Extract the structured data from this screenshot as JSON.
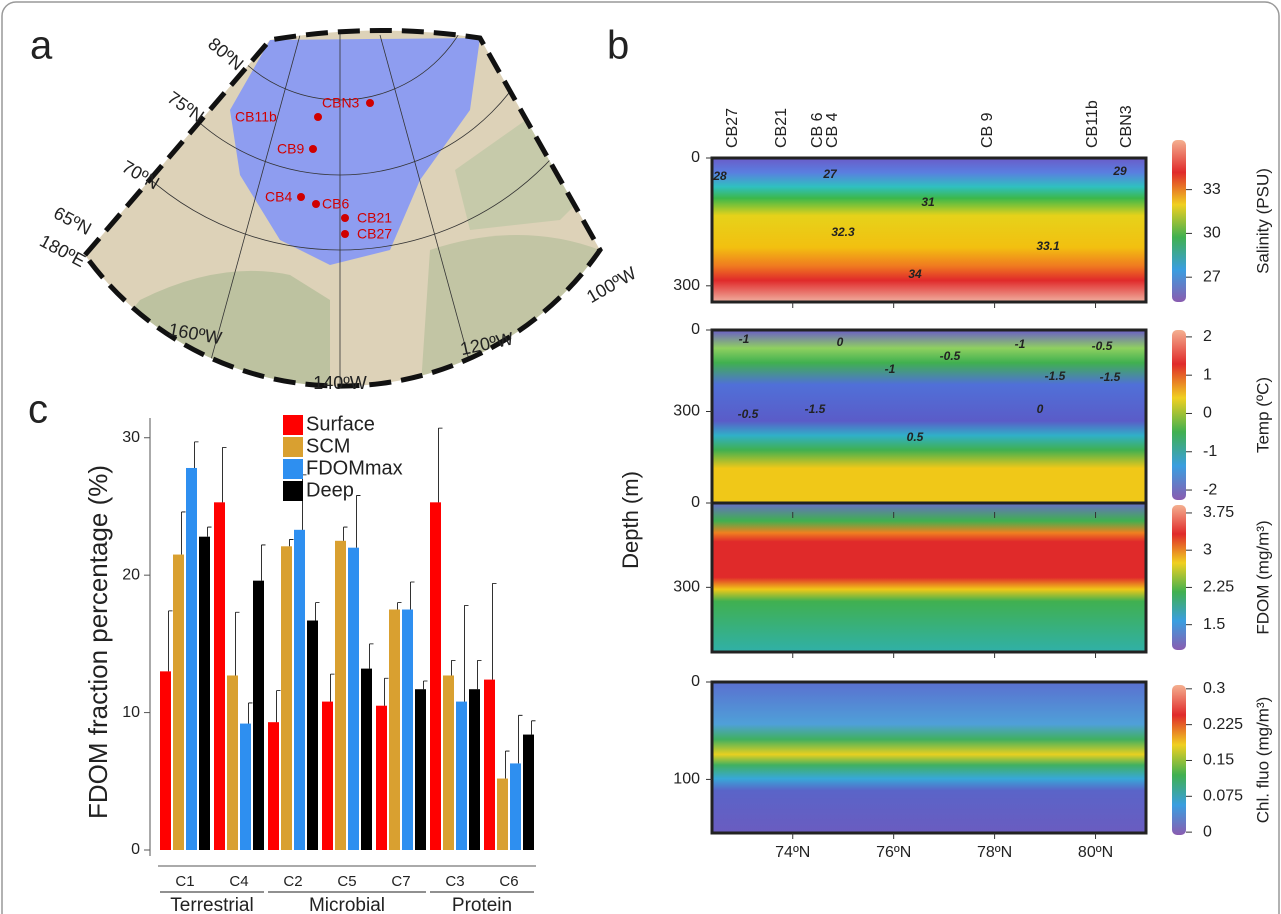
{
  "map": {
    "panel_label": "a",
    "latitudes": [
      "80ºN",
      "75ºN",
      "70ºN",
      "65ºN",
      "180ºE"
    ],
    "longitudes": [
      "160ºW",
      "140ºW",
      "120ºW",
      "100ºW"
    ],
    "stations": [
      "CBN3",
      "CB11b",
      "CB9",
      "CB4",
      "CB6",
      "CB21",
      "CB27"
    ]
  },
  "sections": {
    "panel_label": "b",
    "y_label": "Depth (m)",
    "stations": [
      "CB27",
      "CB21",
      "CB 6",
      "CB 4",
      "CB 9",
      "CB11b",
      "CBN3"
    ],
    "xlim": [
      72.4,
      81.0
    ],
    "xticks": [
      {
        "value": 74,
        "label": "74ºN"
      },
      {
        "value": 76,
        "label": "76ºN"
      },
      {
        "value": 78,
        "label": "78ºN"
      },
      {
        "value": 80,
        "label": "80ºN"
      }
    ],
    "panels": [
      {
        "colorbar_label": "Salinity (PSU)",
        "ylim": [
          0,
          338
        ],
        "yticks": [
          0,
          300
        ],
        "clim": [
          25.3,
          36.4
        ],
        "cticks": [
          33,
          30,
          27
        ],
        "contour_labels": [
          28,
          27,
          31,
          32.3,
          33.1,
          34,
          29
        ]
      },
      {
        "colorbar_label": "Temp (ºC)",
        "ylim": [
          0,
          670
        ],
        "yticks": [
          0,
          300
        ],
        "clim": [
          -2.26,
          2.18
        ],
        "cticks": [
          2,
          1,
          0,
          -1,
          -2
        ],
        "contour_labels": [
          -1,
          0,
          -0.5,
          -1,
          -1,
          -1.5,
          -0.5,
          -1.5,
          -0.5,
          -1.5,
          0,
          0.5
        ]
      },
      {
        "colorbar_label": "FDOM (mg/m³)",
        "ylim": [
          0,
          530
        ],
        "yticks": [
          0,
          300
        ],
        "clim": [
          0.99,
          3.91
        ],
        "cticks": [
          3.75,
          3,
          2.25,
          1.5
        ]
      },
      {
        "colorbar_label": "Chl. fluo (mg/m³)",
        "ylim": [
          0,
          155
        ],
        "yticks": [
          0,
          100
        ],
        "clim": [
          -0.006,
          0.308
        ],
        "cticks": [
          0.3,
          0.225,
          0.15,
          0.075,
          0
        ]
      }
    ]
  },
  "chart_data": {
    "type": "bar",
    "panel_label": "c",
    "y_label": "FDOM fraction percentage (%)",
    "categories": [
      "C1",
      "C4",
      "C2",
      "C5",
      "C7",
      "C3",
      "C6"
    ],
    "groups": [
      "Terrestrial",
      "Microbial",
      "Protein"
    ],
    "ylim": [
      0,
      31
    ],
    "yticks": [
      0,
      10,
      20,
      30
    ],
    "series": [
      {
        "name": "Surface",
        "color": "#ff0000",
        "values": [
          13.0,
          25.3,
          9.3,
          10.8,
          10.5,
          25.3,
          12.4
        ],
        "errors": [
          4.4,
          4.0,
          2.3,
          2.0,
          2.0,
          5.4,
          7.0
        ]
      },
      {
        "name": "SCM",
        "color": "#d9a030",
        "values": [
          21.5,
          12.7,
          22.1,
          22.5,
          17.5,
          12.7,
          5.2
        ],
        "errors": [
          3.1,
          4.6,
          0.5,
          1.0,
          0.5,
          1.1,
          2.0
        ]
      },
      {
        "name": "FDOMmax",
        "color": "#2e8ff0",
        "values": [
          27.8,
          9.2,
          23.3,
          22.0,
          17.5,
          10.8,
          6.3
        ],
        "errors": [
          1.9,
          1.5,
          4.0,
          3.8,
          2.0,
          7.0,
          3.5
        ]
      },
      {
        "name": "Deep",
        "color": "#000000",
        "values": [
          22.8,
          19.6,
          16.7,
          13.2,
          11.7,
          11.7,
          8.4
        ],
        "errors": [
          0.7,
          2.6,
          1.3,
          1.8,
          0.6,
          2.1,
          1.0
        ]
      }
    ]
  }
}
